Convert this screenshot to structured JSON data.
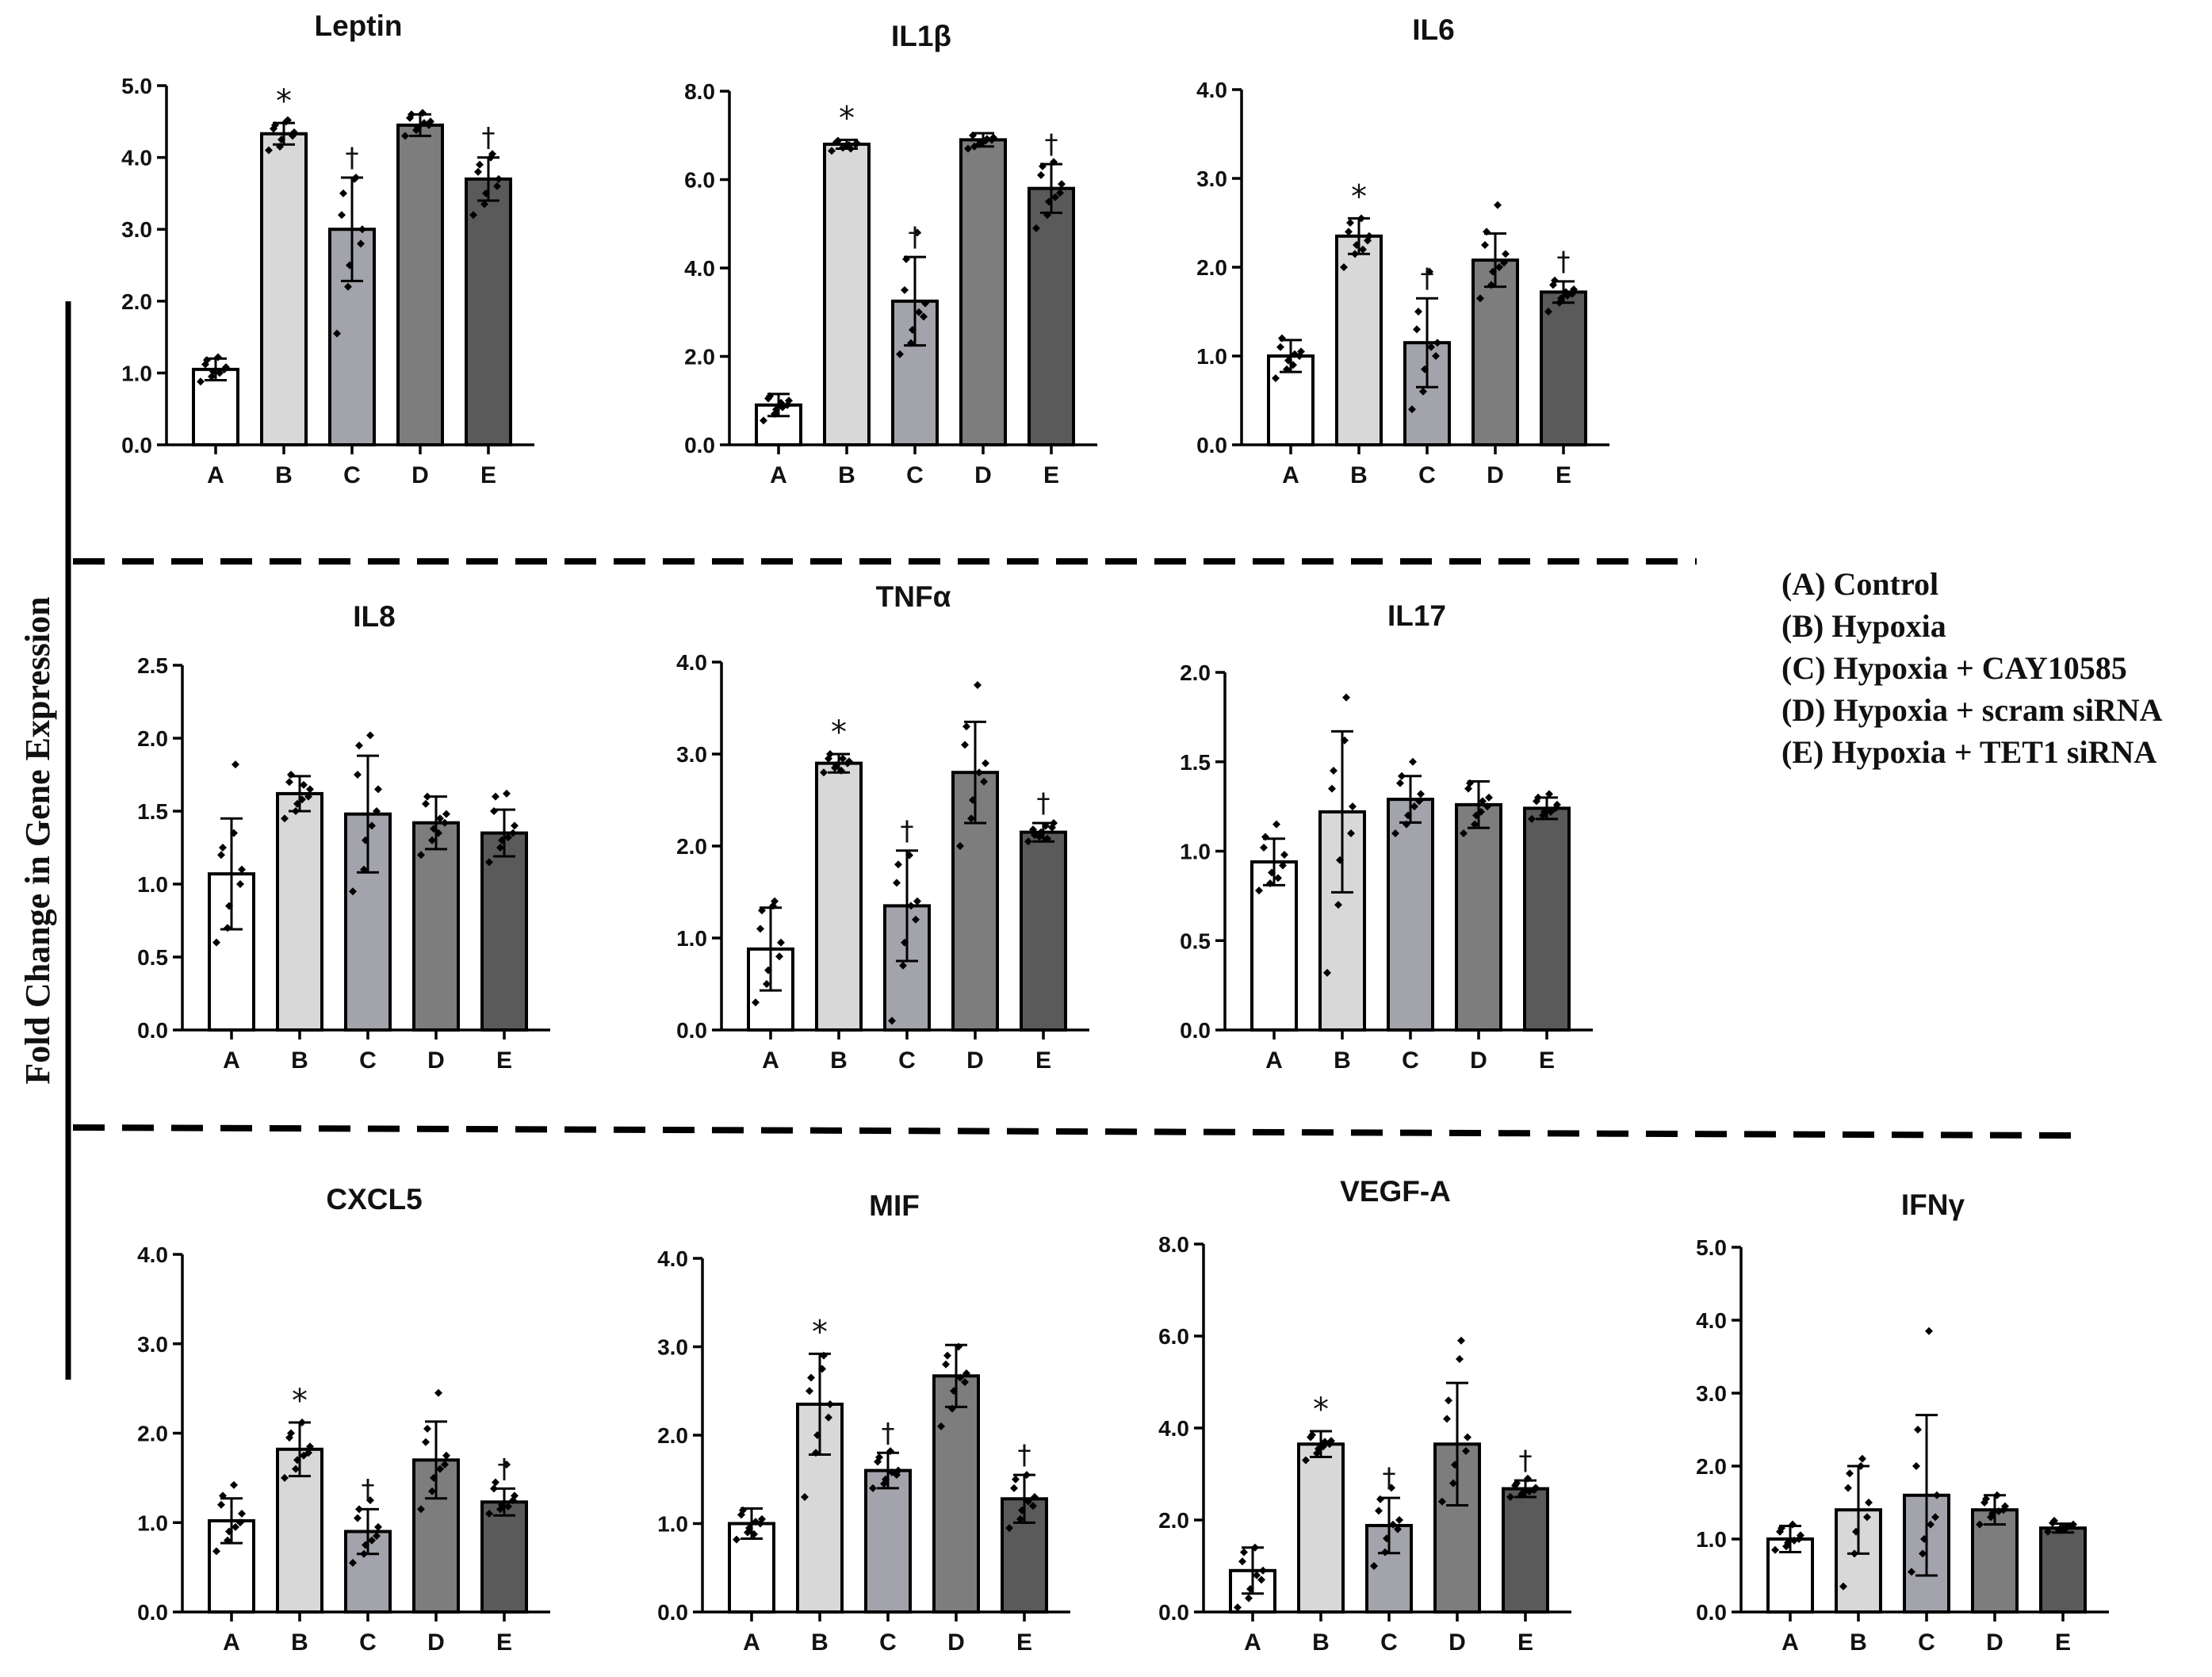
{
  "y_axis_label": "Fold Change in Gene Expression",
  "legend": {
    "items": [
      "(A) Control",
      "(B) Hypoxia",
      "(C) Hypoxia + CAY10585",
      "(D) Hypoxia + scram siRNA",
      "(E) Hypoxia + TET1 siRNA"
    ]
  },
  "colors": {
    "A": "#ffffff",
    "B": "#d8d8d8",
    "C": "#a3a3ab",
    "D": "#7d7d7d",
    "E": "#5a5a5a",
    "edge": "#000000"
  },
  "chart_data": [
    {
      "type": "bar",
      "title": "Leptin",
      "categories": [
        "A",
        "B",
        "C",
        "D",
        "E"
      ],
      "values": [
        1.05,
        4.33,
        3.0,
        4.45,
        3.7
      ],
      "errors": [
        0.15,
        0.15,
        0.72,
        0.15,
        0.3
      ],
      "points": [
        [
          0.88,
          0.95,
          1.02,
          1.05,
          1.08,
          1.12,
          1.18,
          1.22,
          1.0
        ],
        [
          4.1,
          4.15,
          4.25,
          4.3,
          4.35,
          4.4,
          4.45,
          4.5,
          4.52
        ],
        [
          1.55,
          2.2,
          2.5,
          2.8,
          3.0,
          3.2,
          3.5,
          3.7,
          3.72
        ],
        [
          4.3,
          4.38,
          4.42,
          4.45,
          4.5,
          4.55,
          4.6,
          4.62,
          4.48
        ],
        [
          3.2,
          3.35,
          3.5,
          3.6,
          3.7,
          3.8,
          3.9,
          4.0,
          4.05
        ]
      ],
      "significance": [
        "",
        "*",
        "†",
        "",
        "†"
      ],
      "ylim": [
        0,
        5
      ],
      "yticks": [
        "0.0",
        "1.0",
        "2.0",
        "3.0",
        "4.0",
        "5.0"
      ]
    },
    {
      "type": "bar",
      "title": "IL1β",
      "categories": [
        "A",
        "B",
        "C",
        "D",
        "E"
      ],
      "values": [
        0.9,
        6.8,
        3.25,
        6.9,
        5.8
      ],
      "errors": [
        0.25,
        0.1,
        1.0,
        0.15,
        0.55
      ],
      "points": [
        [
          0.55,
          0.7,
          0.8,
          0.9,
          1.0,
          1.05,
          1.1,
          0.95,
          0.85
        ],
        [
          6.65,
          6.72,
          6.75,
          6.8,
          6.82,
          6.85,
          6.88,
          6.78,
          6.7
        ],
        [
          2.05,
          2.3,
          2.6,
          2.9,
          3.2,
          3.5,
          4.2,
          4.8,
          3.0
        ],
        [
          6.7,
          6.8,
          6.85,
          6.9,
          6.95,
          7.0,
          6.75,
          6.88,
          6.92
        ],
        [
          4.9,
          5.2,
          5.5,
          5.7,
          5.9,
          6.1,
          6.3,
          6.4,
          5.6
        ]
      ],
      "significance": [
        "",
        "*",
        "†",
        "",
        "†"
      ],
      "ylim": [
        0,
        8
      ],
      "yticks": [
        "0.0",
        "2.0",
        "4.0",
        "6.0",
        "8.0"
      ]
    },
    {
      "type": "bar",
      "title": "IL6",
      "categories": [
        "A",
        "B",
        "C",
        "D",
        "E"
      ],
      "values": [
        1.0,
        2.35,
        1.15,
        2.08,
        1.72
      ],
      "errors": [
        0.18,
        0.2,
        0.5,
        0.3,
        0.12
      ],
      "points": [
        [
          0.75,
          0.85,
          0.95,
          1.0,
          1.05,
          1.1,
          1.2,
          0.9,
          1.02
        ],
        [
          2.0,
          2.15,
          2.25,
          2.3,
          2.35,
          2.4,
          2.5,
          2.55,
          2.2
        ],
        [
          0.4,
          0.6,
          0.85,
          1.0,
          1.15,
          1.3,
          1.5,
          1.95,
          1.1
        ],
        [
          1.65,
          1.8,
          1.95,
          2.05,
          2.15,
          2.25,
          2.4,
          2.7,
          2.0
        ],
        [
          1.5,
          1.6,
          1.65,
          1.7,
          1.75,
          1.8,
          1.85,
          1.72,
          1.68
        ]
      ],
      "significance": [
        "",
        "*",
        "†",
        "",
        "†"
      ],
      "ylim": [
        0,
        4
      ],
      "yticks": [
        "0.0",
        "1.0",
        "2.0",
        "3.0",
        "4.0"
      ]
    },
    {
      "type": "bar",
      "title": "IL8",
      "categories": [
        "A",
        "B",
        "C",
        "D",
        "E"
      ],
      "values": [
        1.07,
        1.62,
        1.48,
        1.42,
        1.35
      ],
      "errors": [
        0.38,
        0.12,
        0.4,
        0.18,
        0.16
      ],
      "points": [
        [
          0.6,
          0.7,
          0.85,
          1.0,
          1.1,
          1.2,
          1.25,
          1.35,
          1.82
        ],
        [
          1.45,
          1.5,
          1.55,
          1.6,
          1.65,
          1.7,
          1.75,
          1.58,
          1.68
        ],
        [
          0.95,
          1.1,
          1.3,
          1.5,
          1.65,
          1.75,
          1.95,
          2.02,
          1.4
        ],
        [
          1.2,
          1.3,
          1.38,
          1.42,
          1.48,
          1.55,
          1.6,
          1.35,
          1.45
        ],
        [
          1.15,
          1.25,
          1.3,
          1.35,
          1.4,
          1.5,
          1.6,
          1.62,
          1.32
        ]
      ],
      "significance": [
        "",
        "",
        "",
        "",
        ""
      ],
      "ylim": [
        0,
        2.5
      ],
      "yticks": [
        "0.0",
        "0.5",
        "1.0",
        "1.5",
        "2.0",
        "2.5"
      ]
    },
    {
      "type": "bar",
      "title": "TNFα",
      "categories": [
        "A",
        "B",
        "C",
        "D",
        "E"
      ],
      "values": [
        0.88,
        2.9,
        1.35,
        2.8,
        2.15
      ],
      "errors": [
        0.45,
        0.1,
        0.6,
        0.55,
        0.1
      ],
      "points": [
        [
          0.3,
          0.5,
          0.65,
          0.8,
          0.95,
          1.1,
          1.3,
          1.35,
          1.4
        ],
        [
          2.8,
          2.85,
          2.88,
          2.9,
          2.92,
          2.95,
          3.0,
          2.82,
          2.95
        ],
        [
          0.1,
          0.7,
          0.95,
          1.2,
          1.4,
          1.6,
          1.8,
          1.9,
          1.35
        ],
        [
          2.0,
          2.3,
          2.5,
          2.7,
          2.9,
          3.1,
          3.3,
          3.75,
          2.8
        ],
        [
          2.05,
          2.1,
          2.15,
          2.2,
          2.25,
          2.18,
          2.12,
          2.22,
          2.08
        ]
      ],
      "significance": [
        "",
        "*",
        "†",
        "",
        "†"
      ],
      "ylim": [
        0,
        4
      ],
      "yticks": [
        "0.0",
        "1.0",
        "2.0",
        "3.0",
        "4.0"
      ]
    },
    {
      "type": "bar",
      "title": "IL17",
      "categories": [
        "A",
        "B",
        "C",
        "D",
        "E"
      ],
      "values": [
        0.94,
        1.22,
        1.29,
        1.26,
        1.24
      ],
      "errors": [
        0.13,
        0.45,
        0.13,
        0.13,
        0.06
      ],
      "points": [
        [
          0.78,
          0.82,
          0.88,
          0.92,
          0.98,
          1.02,
          1.08,
          1.15,
          0.85
        ],
        [
          0.32,
          0.7,
          0.95,
          1.1,
          1.25,
          1.35,
          1.45,
          1.62,
          1.86
        ],
        [
          1.1,
          1.15,
          1.2,
          1.28,
          1.32,
          1.38,
          1.42,
          1.5,
          1.25
        ],
        [
          1.1,
          1.15,
          1.2,
          1.25,
          1.3,
          1.35,
          1.38,
          1.22,
          1.28
        ],
        [
          1.18,
          1.2,
          1.22,
          1.24,
          1.26,
          1.28,
          1.3,
          1.32,
          1.22
        ]
      ],
      "significance": [
        "",
        "",
        "",
        "",
        ""
      ],
      "ylim": [
        0,
        2
      ],
      "yticks": [
        "0.0",
        "0.5",
        "1.0",
        "1.5",
        "2.0"
      ]
    },
    {
      "type": "bar",
      "title": "CXCL5",
      "categories": [
        "A",
        "B",
        "C",
        "D",
        "E"
      ],
      "values": [
        1.02,
        1.82,
        0.9,
        1.7,
        1.23
      ],
      "errors": [
        0.25,
        0.3,
        0.25,
        0.43,
        0.15
      ],
      "points": [
        [
          0.68,
          0.8,
          0.9,
          1.0,
          1.1,
          1.2,
          1.3,
          1.42,
          0.95
        ],
        [
          1.5,
          1.6,
          1.7,
          1.78,
          1.85,
          1.95,
          2.0,
          2.12,
          1.75
        ],
        [
          0.55,
          0.65,
          0.75,
          0.85,
          0.95,
          1.05,
          1.15,
          1.25,
          0.8
        ],
        [
          1.15,
          1.35,
          1.5,
          1.65,
          1.75,
          1.9,
          2.05,
          2.45,
          1.6
        ],
        [
          1.1,
          1.15,
          1.2,
          1.25,
          1.3,
          1.38,
          1.45,
          1.65,
          1.18
        ]
      ],
      "significance": [
        "",
        "*",
        "†",
        "",
        "†"
      ],
      "ylim": [
        0,
        4
      ],
      "yticks": [
        "0.0",
        "1.0",
        "2.0",
        "3.0",
        "4.0"
      ]
    },
    {
      "type": "bar",
      "title": "MIF",
      "categories": [
        "A",
        "B",
        "C",
        "D",
        "E"
      ],
      "values": [
        1.0,
        2.35,
        1.6,
        2.67,
        1.28
      ],
      "errors": [
        0.17,
        0.57,
        0.2,
        0.35,
        0.27
      ],
      "points": [
        [
          0.82,
          0.9,
          0.95,
          1.0,
          1.05,
          1.1,
          1.15,
          0.88,
          1.02
        ],
        [
          1.3,
          1.8,
          2.0,
          2.2,
          2.35,
          2.5,
          2.65,
          2.75,
          2.9
        ],
        [
          1.4,
          1.45,
          1.5,
          1.55,
          1.6,
          1.7,
          1.75,
          1.82,
          1.58
        ],
        [
          2.1,
          2.3,
          2.5,
          2.6,
          2.7,
          2.8,
          2.9,
          3.0,
          2.65
        ],
        [
          0.95,
          1.05,
          1.15,
          1.2,
          1.3,
          1.4,
          1.5,
          1.55,
          1.25
        ]
      ],
      "significance": [
        "",
        "*",
        "†",
        "",
        "†"
      ],
      "ylim": [
        0,
        4
      ],
      "yticks": [
        "0.0",
        "1.0",
        "2.0",
        "3.0",
        "4.0"
      ]
    },
    {
      "type": "bar",
      "title": "VEGF-A",
      "categories": [
        "A",
        "B",
        "C",
        "D",
        "E"
      ],
      "values": [
        0.9,
        3.65,
        1.88,
        3.65,
        2.68
      ],
      "errors": [
        0.5,
        0.28,
        0.6,
        1.33,
        0.18
      ],
      "points": [
        [
          0.1,
          0.3,
          0.5,
          0.7,
          0.9,
          1.1,
          1.3,
          1.4,
          0.8
        ],
        [
          3.3,
          3.45,
          3.55,
          3.65,
          3.72,
          3.8,
          3.85,
          3.6,
          3.7
        ],
        [
          1.0,
          1.3,
          1.6,
          1.8,
          2.0,
          2.2,
          2.45,
          2.7,
          1.9
        ],
        [
          2.4,
          2.8,
          3.2,
          3.5,
          3.8,
          4.2,
          4.6,
          5.5,
          5.9
        ],
        [
          2.5,
          2.55,
          2.6,
          2.65,
          2.7,
          2.75,
          2.8,
          2.9,
          2.62
        ]
      ],
      "significance": [
        "",
        "*",
        "†",
        "",
        "†"
      ],
      "ylim": [
        0,
        8
      ],
      "yticks": [
        "0.0",
        "2.0",
        "4.0",
        "6.0",
        "8.0"
      ]
    },
    {
      "type": "bar",
      "title": "IFNγ",
      "categories": [
        "A",
        "B",
        "C",
        "D",
        "E"
      ],
      "values": [
        1.0,
        1.4,
        1.6,
        1.4,
        1.15
      ],
      "errors": [
        0.18,
        0.6,
        1.1,
        0.2,
        0.06
      ],
      "points": [
        [
          0.85,
          0.9,
          0.95,
          1.0,
          1.05,
          1.1,
          1.15,
          1.2,
          0.98
        ],
        [
          0.35,
          0.8,
          1.1,
          1.3,
          1.5,
          1.7,
          1.9,
          2.0,
          2.1
        ],
        [
          0.55,
          0.8,
          1.0,
          1.3,
          1.6,
          2.0,
          2.5,
          3.85,
          1.2
        ],
        [
          1.2,
          1.3,
          1.35,
          1.4,
          1.45,
          1.5,
          1.55,
          1.6,
          1.38
        ],
        [
          1.1,
          1.12,
          1.15,
          1.18,
          1.2,
          1.22,
          1.25,
          1.14,
          1.17
        ]
      ],
      "significance": [
        "",
        "",
        "",
        "",
        ""
      ],
      "ylim": [
        0,
        5
      ],
      "yticks": [
        "0.0",
        "1.0",
        "2.0",
        "3.0",
        "4.0",
        "5.0"
      ]
    }
  ]
}
